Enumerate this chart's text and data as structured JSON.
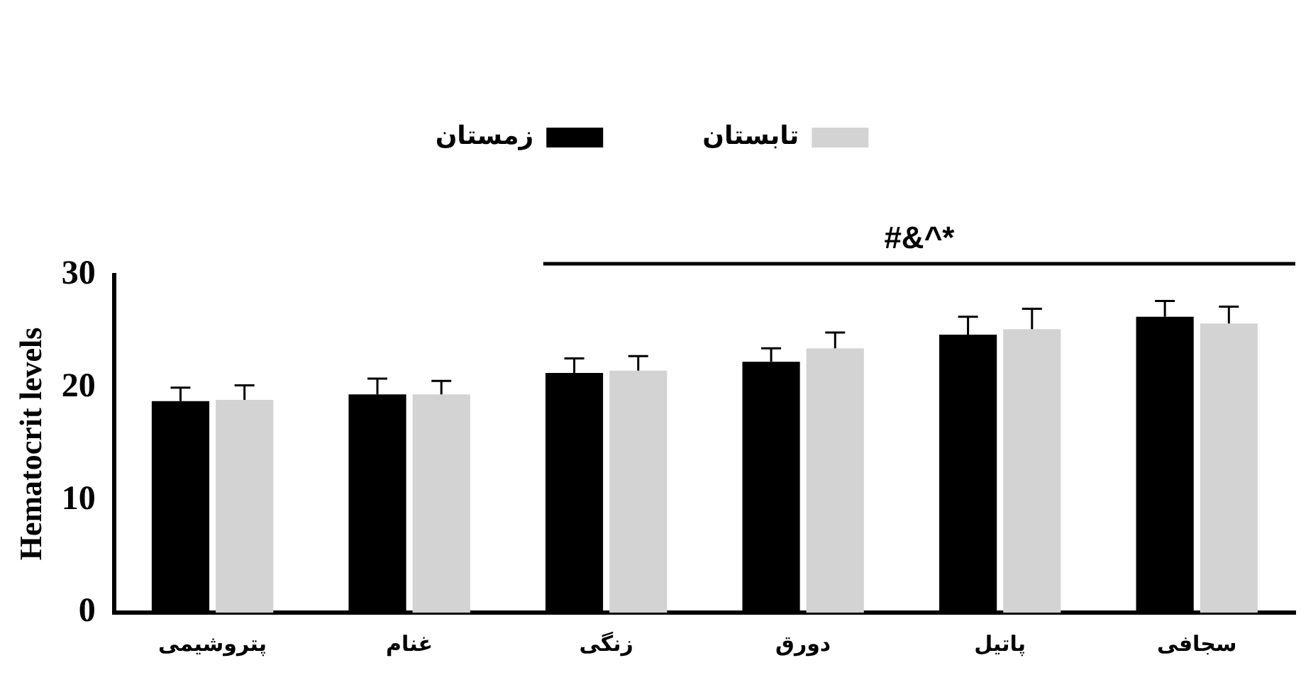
{
  "chart_data": {
    "type": "bar",
    "categories": [
      "پتروشیمی",
      "غنام",
      "زنگی",
      "دورق",
      "پاتیل",
      "سجافی"
    ],
    "series": [
      {
        "name": "زمستان",
        "color": "#000000",
        "values": [
          18.8,
          19.4,
          21.3,
          22.3,
          24.7,
          26.3
        ],
        "errors": [
          [
            18.8,
            20.0
          ],
          [
            19.4,
            20.8
          ],
          [
            21.3,
            22.6
          ],
          [
            22.3,
            23.5
          ],
          [
            24.7,
            26.3
          ],
          [
            26.3,
            27.7
          ]
        ]
      },
      {
        "name": "تابستان",
        "color": "#d3d3d3",
        "values": [
          18.9,
          19.4,
          21.5,
          23.5,
          25.2,
          25.7
        ],
        "errors": [
          [
            18.9,
            20.2
          ],
          [
            19.4,
            20.6
          ],
          [
            21.5,
            22.8
          ],
          [
            23.5,
            24.9
          ],
          [
            25.2,
            27.0
          ],
          [
            25.7,
            27.2
          ]
        ]
      }
    ],
    "ylabel": "Hematocrit levels",
    "ylim": [
      0,
      30
    ],
    "yticks": [
      0,
      10,
      20,
      30
    ],
    "annotations": [
      "#&^*"
    ],
    "grid": false,
    "legend": "top"
  }
}
